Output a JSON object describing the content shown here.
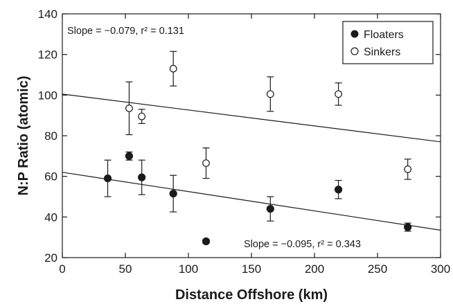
{
  "chart_data": {
    "type": "scatter",
    "title": "",
    "xlabel": "Distance Offshore (km)",
    "ylabel": "N:P Ratio (atomic)",
    "xlim": [
      0,
      300
    ],
    "ylim": [
      20,
      140
    ],
    "xticks": [
      0,
      50,
      100,
      150,
      200,
      250,
      300
    ],
    "yticks": [
      20,
      40,
      60,
      80,
      100,
      120,
      140
    ],
    "legend_position": "top-right",
    "series": [
      {
        "name": "Floaters",
        "marker": "filled-circle",
        "color": "#1a1a1a",
        "points": [
          {
            "x": 36,
            "y": 59,
            "err": 9
          },
          {
            "x": 53,
            "y": 70,
            "err": 2
          },
          {
            "x": 63,
            "y": 59.5,
            "err": 8.5
          },
          {
            "x": 88,
            "y": 51.5,
            "err": 9
          },
          {
            "x": 114,
            "y": 28,
            "err": 1
          },
          {
            "x": 165,
            "y": 44,
            "err": 6
          },
          {
            "x": 219,
            "y": 53.5,
            "err": 4.5
          },
          {
            "x": 274,
            "y": 35,
            "err": 2
          }
        ],
        "trendline": {
          "x": [
            0,
            300
          ],
          "y": [
            62,
            33.5
          ]
        },
        "annotation": "Slope = −0.095, r² = 0.343"
      },
      {
        "name": "Sinkers",
        "marker": "open-circle",
        "color": "#1a1a1a",
        "points": [
          {
            "x": 53,
            "y": 93.5,
            "err": 13
          },
          {
            "x": 63,
            "y": 89.5,
            "err": 3.5
          },
          {
            "x": 88,
            "y": 113,
            "err": 8.5
          },
          {
            "x": 114,
            "y": 66.5,
            "err": 7.5
          },
          {
            "x": 165,
            "y": 100.5,
            "err": 8.5
          },
          {
            "x": 219,
            "y": 100.5,
            "err": 5.5
          },
          {
            "x": 274,
            "y": 63.5,
            "err": 5
          }
        ],
        "trendline": {
          "x": [
            0,
            300
          ],
          "y": [
            100.5,
            77
          ]
        },
        "annotation": "Slope = −0.079, r² = 0.131"
      }
    ]
  }
}
